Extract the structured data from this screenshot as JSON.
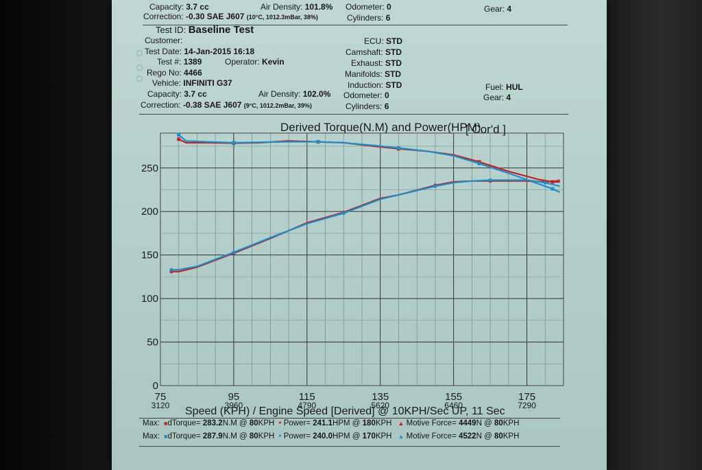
{
  "header_prev": {
    "capacity_label": "Capacity:",
    "capacity_value": "3.7 cc",
    "air_density_label": "Air Density:",
    "air_density_value": "101.8%",
    "odometer_label": "Odometer:",
    "odometer_value": "0",
    "gear_label": "Gear:",
    "gear_value": "4",
    "correction_label": "Correction:",
    "correction_value": "-0.30 SAE J607",
    "correction_detail": "(10°C, 1012.3mBar, 38%)",
    "cylinders_label": "Cylinders:",
    "cylinders_value": "6"
  },
  "header": {
    "test_id_label": "Test ID:",
    "test_id_value": "Baseline Test",
    "customer_label": "Customer:",
    "test_date_label": "Test Date:",
    "test_date_value": "14-Jan-2015 16:18",
    "test_no_label": "Test #:",
    "test_no_value": "1389",
    "operator_label": "Operator:",
    "operator_value": "Kevin",
    "rego_label": "Rego No:",
    "rego_value": "4466",
    "vehicle_label": "Vehicle:",
    "vehicle_value": "INFINITI G37",
    "capacity_label": "Capacity:",
    "capacity_value": "3.7 cc",
    "air_density_label": "Air Density:",
    "air_density_value": "102.0%",
    "odometer_label": "Odometer:",
    "odometer_value": "0",
    "correction_label": "Correction:",
    "correction_value": "-0.38 SAE J607",
    "correction_detail": "(9°C, 1012.2mBar, 39%)",
    "cylinders_label": "Cylinders:",
    "cylinders_value": "6",
    "ecu_label": "ECU:",
    "ecu_value": "STD",
    "camshaft_label": "Camshaft:",
    "camshaft_value": "STD",
    "exhaust_label": "Exhaust:",
    "exhaust_value": "STD",
    "manifolds_label": "Manifolds:",
    "manifolds_value": "STD",
    "induction_label": "Induction:",
    "induction_value": "STD",
    "fuel_label": "Fuel:",
    "fuel_value": "HUL",
    "gear_label": "Gear:",
    "gear_value": "4"
  },
  "chart_data": {
    "type": "line",
    "title": "Derived Torque(N.M) and Power(HPM)",
    "title_suffix": "[ Cor'd ]",
    "xlabel": "Speed (KPH) / Engine Speed [Derived] @ 10KPH/Sec UP, 11 Sec",
    "xlim": [
      75,
      185
    ],
    "ylim": [
      0,
      290
    ],
    "y_ticks": [
      0,
      50,
      100,
      150,
      200,
      250
    ],
    "x_ticks": [
      {
        "speed": "75",
        "rpm": "3120",
        "x": 75
      },
      {
        "speed": "95",
        "rpm": "3960",
        "x": 95
      },
      {
        "speed": "115",
        "rpm": "4790",
        "x": 115
      },
      {
        "speed": "135",
        "rpm": "5620",
        "x": 135
      },
      {
        "speed": "155",
        "rpm": "6460",
        "x": 155
      },
      {
        "speed": "175",
        "rpm": "7290",
        "x": 175
      }
    ],
    "grid": true,
    "series": [
      {
        "color": "#c42020",
        "marker": "square",
        "x": [
          80,
          82,
          88,
          95,
          102,
          110,
          118,
          125,
          133,
          140,
          148,
          155,
          162,
          170,
          178,
          182,
          184
        ],
        "y": [
          283,
          279,
          279,
          278.5,
          279,
          281,
          280,
          279,
          275,
          272,
          269,
          265,
          257,
          246,
          237,
          234,
          234
        ]
      },
      {
        "color": "#1a8fd0",
        "marker": "square",
        "x": [
          80,
          82,
          88,
          95,
          102,
          110,
          118,
          125,
          133,
          140,
          148,
          155,
          162,
          170,
          178,
          182,
          184
        ],
        "y": [
          288,
          281,
          280,
          279,
          279.5,
          280,
          280,
          279,
          276,
          273,
          269,
          264,
          255,
          244,
          232,
          226,
          222
        ]
      },
      {
        "color": "#c42020",
        "marker": "circle",
        "x": [
          78,
          80,
          85,
          95,
          105,
          115,
          125,
          135,
          140,
          150,
          155,
          160,
          165,
          170,
          175,
          180,
          183,
          184
        ],
        "y": [
          131,
          131,
          136,
          152,
          169,
          187,
          199,
          215,
          219,
          230,
          234,
          235,
          235,
          235,
          235,
          234,
          235,
          236
        ]
      },
      {
        "color": "#1a8fd0",
        "marker": "circle",
        "x": [
          78,
          80,
          85,
          95,
          105,
          115,
          125,
          135,
          140,
          150,
          155,
          160,
          165,
          170,
          175,
          180,
          183,
          184
        ],
        "y": [
          133,
          133,
          137,
          153,
          170,
          186,
          198,
          214,
          219,
          229,
          233,
          235,
          236,
          236,
          236,
          233,
          230,
          229
        ]
      }
    ]
  },
  "max_rows": [
    {
      "label": "Max:",
      "color": "#c42020",
      "marker_square": "■",
      "torque_label": "dTorque=",
      "torque_value": "283.2",
      "torque_unit": "N.M @",
      "torque_at": "80",
      "torque_at_unit": "KPH",
      "marker_circle": "•",
      "power_label": "Power=",
      "power_value": "241.1",
      "power_unit": "HPM @",
      "power_at": "180",
      "power_at_unit": "KPH",
      "marker_tri": "▲",
      "force_label": "Motive Force=",
      "force_value": "4449",
      "force_unit": "N @",
      "force_at": "80",
      "force_at_unit": "KPH"
    },
    {
      "label": "Max:",
      "color": "#1a8fd0",
      "marker_square": "■",
      "torque_label": "dTorque=",
      "torque_value": "287.9",
      "torque_unit": "N.M @",
      "torque_at": "80",
      "torque_at_unit": "KPH",
      "marker_circle": "•",
      "power_label": "Power=",
      "power_value": "240.0",
      "power_unit": "HPM @",
      "power_at": "170",
      "power_at_unit": "KPH",
      "marker_tri": "▲",
      "force_label": "Motive Force=",
      "force_value": "4522",
      "force_unit": "N @",
      "force_at": "80",
      "force_at_unit": "KPH"
    }
  ]
}
